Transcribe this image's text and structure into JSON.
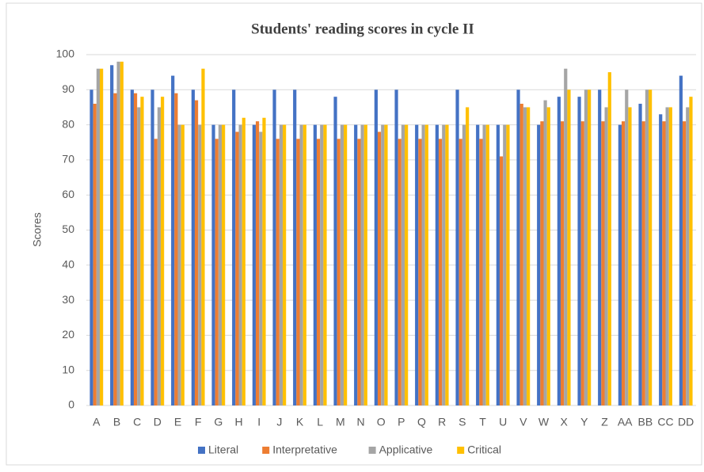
{
  "chart_data": {
    "type": "bar",
    "title": "Students' reading scores in cycle II",
    "y_label": "Scores",
    "categories": [
      "A",
      "B",
      "C",
      "D",
      "E",
      "F",
      "G",
      "H",
      "I",
      "J",
      "K",
      "L",
      "M",
      "N",
      "O",
      "P",
      "Q",
      "R",
      "S",
      "T",
      "U",
      "V",
      "W",
      "X",
      "Y",
      "Z",
      "AA",
      "BB",
      "CC",
      "DD"
    ],
    "series": [
      {
        "name": "Literal",
        "color": "#4472c4",
        "values": [
          90,
          97,
          90,
          90,
          94,
          90,
          80,
          90,
          80,
          90,
          90,
          80,
          88,
          80,
          90,
          90,
          80,
          80,
          90,
          80,
          80,
          90,
          80,
          88,
          88,
          90,
          80,
          86,
          83,
          94
        ]
      },
      {
        "name": "Interpretative",
        "color": "#ed7d31",
        "values": [
          86,
          89,
          89,
          76,
          89,
          87,
          76,
          78,
          81,
          76,
          76,
          76,
          76,
          76,
          78,
          76,
          76,
          76,
          76,
          76,
          71,
          86,
          81,
          81,
          81,
          81,
          81,
          81,
          81,
          81
        ]
      },
      {
        "name": "Applicative",
        "color": "#a5a5a5",
        "values": [
          96,
          98,
          85,
          85,
          80,
          80,
          80,
          80,
          78,
          80,
          80,
          80,
          80,
          80,
          80,
          80,
          80,
          80,
          80,
          80,
          80,
          85,
          87,
          96,
          90,
          85,
          90,
          90,
          85,
          85
        ]
      },
      {
        "name": "Critical",
        "color": "#ffc000",
        "values": [
          96,
          98,
          88,
          88,
          80,
          96,
          80,
          82,
          82,
          80,
          80,
          80,
          80,
          80,
          80,
          80,
          80,
          80,
          85,
          80,
          80,
          85,
          85,
          90,
          90,
          95,
          85,
          90,
          85,
          88
        ]
      }
    ],
    "ylim": [
      0,
      100
    ],
    "yticks": [
      0,
      10,
      20,
      30,
      40,
      50,
      60,
      70,
      80,
      90,
      100
    ],
    "grid": true,
    "legend": "bottom"
  }
}
